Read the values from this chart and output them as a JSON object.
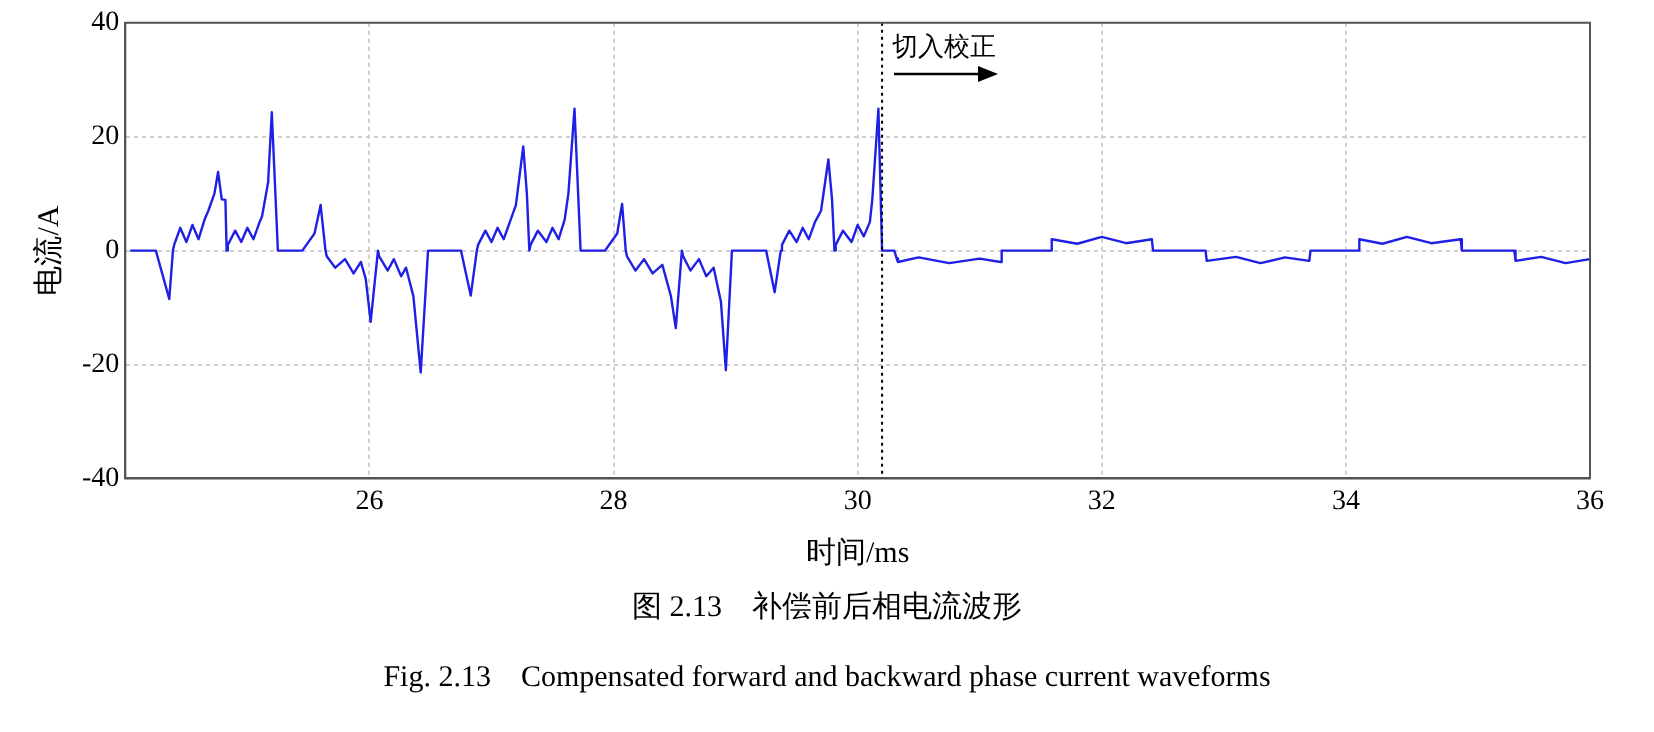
{
  "chart_data": {
    "type": "line",
    "xlabel": "时间/ms",
    "ylabel": "电流/A",
    "xlim": [
      24,
      36
    ],
    "xticks": [
      26,
      28,
      30,
      32,
      34,
      36
    ],
    "ylim": [
      -40,
      40
    ],
    "yticks": [
      -40,
      -20,
      0,
      20,
      40
    ],
    "grid": true,
    "ref_lines": [
      {
        "axis": "x",
        "value": 30.2,
        "label": "切入校正",
        "color": "#000000",
        "line_style": "dotted"
      }
    ],
    "annotations": [
      "图 2.13　补偿前后相电流波形",
      "Fig. 2.13　Compensated forward and backward phase current waveforms"
    ],
    "series": [
      {
        "color": "#1f1fe6",
        "x": [
          24.04,
          24.25,
          24.36,
          24.39,
          24.4,
          24.45,
          24.5,
          24.55,
          24.6,
          24.65,
          24.68,
          24.73,
          24.76,
          24.79,
          24.82,
          24.83,
          24.84,
          24.9,
          24.95,
          25.0,
          25.05,
          25.1,
          25.12,
          25.17,
          25.2,
          25.25,
          25.45,
          25.55,
          25.6,
          25.64,
          25.65,
          25.72,
          25.8,
          25.87,
          25.93,
          25.97,
          26.01,
          26.07,
          26.08,
          26.15,
          26.2,
          26.26,
          26.3,
          26.36,
          26.42,
          26.48,
          26.75,
          26.83,
          26.88,
          26.89,
          26.95,
          27.0,
          27.05,
          27.1,
          27.15,
          27.2,
          27.26,
          27.29,
          27.31,
          27.32,
          27.38,
          27.45,
          27.5,
          27.55,
          27.6,
          27.63,
          27.68,
          27.73,
          27.93,
          28.03,
          28.07,
          28.1,
          28.11,
          28.18,
          28.25,
          28.32,
          28.4,
          28.47,
          28.51,
          28.56,
          28.57,
          28.63,
          28.7,
          28.76,
          28.82,
          28.88,
          28.92,
          28.97,
          29.25,
          29.32,
          29.37,
          29.38,
          29.44,
          29.5,
          29.55,
          29.6,
          29.65,
          29.7,
          29.76,
          29.79,
          29.81,
          29.82,
          29.88,
          29.95,
          30.0,
          30.05,
          30.1,
          30.12,
          30.17,
          30.2,
          30.3,
          30.32,
          30.33,
          30.5,
          30.75,
          31.0,
          31.17,
          31.18,
          31.58,
          31.59,
          31.8,
          32.0,
          32.2,
          32.41,
          32.42,
          32.85,
          32.86,
          33.1,
          33.3,
          33.5,
          33.7,
          33.71,
          34.1,
          34.11,
          34.3,
          34.5,
          34.7,
          34.94,
          34.95,
          35.38,
          35.39,
          35.6,
          35.8,
          36
        ],
        "values": [
          0,
          0,
          -8.5,
          0,
          1,
          4,
          1.5,
          4.5,
          2,
          5.5,
          7,
          10,
          13.8,
          9,
          8.9,
          0,
          1,
          3.5,
          1.5,
          4,
          2,
          5,
          6,
          12,
          24.3,
          0,
          0,
          3,
          8,
          0,
          -1,
          -3,
          -1.5,
          -4,
          -2,
          -5,
          -12.5,
          0,
          -1,
          -3.5,
          -1.5,
          -4.5,
          -3,
          -8,
          -21.4,
          0,
          0,
          -7.9,
          0,
          1,
          3.5,
          1.5,
          4,
          2,
          5,
          8,
          18.3,
          10,
          0,
          1,
          3.5,
          1.5,
          4,
          2,
          5.5,
          10,
          24.9,
          0,
          0,
          3,
          8.2,
          0,
          -1,
          -3.5,
          -1.5,
          -4,
          -2.5,
          -8,
          -13.6,
          0,
          -1,
          -3.5,
          -1.5,
          -4.5,
          -3,
          -9,
          -21,
          0,
          0,
          -7.3,
          0,
          1,
          3.5,
          1.5,
          4,
          2,
          5,
          7,
          16,
          9,
          0,
          1,
          3.5,
          1.5,
          4.5,
          2.5,
          5,
          9,
          24.9,
          0,
          0,
          -1.4,
          -2,
          -1.2,
          -2.2,
          -1.4,
          -2,
          0,
          0,
          2,
          1.2,
          2.4,
          1.3,
          2,
          0,
          0,
          -1.8,
          -1.1,
          -2.2,
          -1.2,
          -1.8,
          0,
          0,
          2,
          1.2,
          2.4,
          1.3,
          2,
          0,
          0,
          -1.8,
          -1.1,
          -2.2,
          -1.5
        ]
      }
    ]
  }
}
